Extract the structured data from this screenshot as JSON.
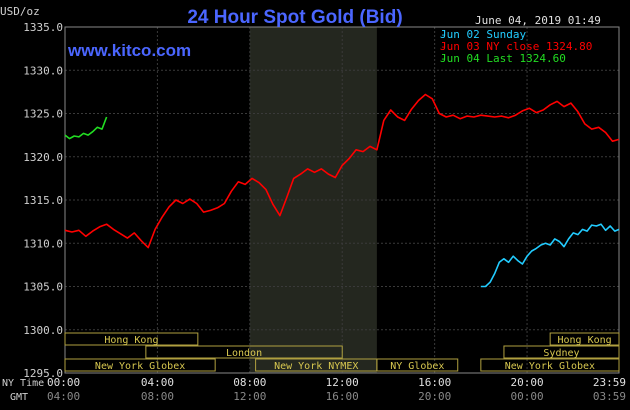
{
  "header": {
    "title": "24 Hour Spot Gold (Bid)",
    "site": "www.kitco.com",
    "y_unit": "USD/oz",
    "timestamp": "June 04, 2019 01:49"
  },
  "legend": [
    {
      "text": "Jun 02 Sunday",
      "color": "#22ccff"
    },
    {
      "text": "Jun 03 NY close 1324.80",
      "color": "#ff0000"
    },
    {
      "text": "Jun 04 Last 1324.60",
      "color": "#22dd22"
    }
  ],
  "x_axis": {
    "row1_label": "NY Time",
    "row2_label": "GMT",
    "ticks_ny": [
      "00:00",
      "04:00",
      "08:00",
      "12:00",
      "16:00",
      "20:00",
      "23:59"
    ],
    "ticks_gmt": [
      "04:00",
      "08:00",
      "12:00",
      "16:00",
      "20:00",
      "00:00",
      "03:59"
    ]
  },
  "sessions": [
    {
      "label": "Hong Kong",
      "start": 0,
      "end": 5.75,
      "row": 0
    },
    {
      "label": "Hong Kong",
      "start": 21.0,
      "end": 23.98,
      "row": 0
    },
    {
      "label": "London",
      "start": 3.5,
      "end": 12.0,
      "row": 1
    },
    {
      "label": "Sydney",
      "start": 19.0,
      "end": 23.98,
      "row": 1
    },
    {
      "label": "New York Globex",
      "start": 0,
      "end": 6.5,
      "row": 2
    },
    {
      "label": "New York NYMEX",
      "start": 8.25,
      "end": 13.5,
      "row": 2
    },
    {
      "label": "NY Globex",
      "start": 13.5,
      "end": 17.0,
      "row": 2
    },
    {
      "label": "New York Globex",
      "start": 18.0,
      "end": 23.98,
      "row": 2
    }
  ],
  "chart_data": {
    "type": "line",
    "title": "24 Hour Spot Gold (Bid)",
    "ylabel": "USD/oz",
    "ylim": [
      1295.0,
      1335.0
    ],
    "yticks": [
      1295.0,
      1300.0,
      1305.0,
      1310.0,
      1315.0,
      1320.0,
      1325.0,
      1330.0,
      1335.0
    ],
    "xlim": [
      0,
      23.98
    ],
    "shaded_region": [
      8.0,
      13.5
    ],
    "series": [
      {
        "name": "Jun 02 Sunday",
        "color": "#22ccff",
        "x": [
          18.0,
          18.2,
          18.4,
          18.6,
          18.8,
          19.0,
          19.2,
          19.4,
          19.6,
          19.8,
          20.0,
          20.2,
          20.4,
          20.6,
          20.8,
          21.0,
          21.2,
          21.4,
          21.6,
          21.8,
          22.0,
          22.2,
          22.4,
          22.6,
          22.8,
          23.0,
          23.2,
          23.4,
          23.6,
          23.8,
          23.98
        ],
        "values": [
          1305.0,
          1305.0,
          1305.5,
          1306.5,
          1307.8,
          1308.2,
          1307.8,
          1308.5,
          1308.0,
          1307.6,
          1308.5,
          1309.1,
          1309.4,
          1309.8,
          1310.0,
          1309.8,
          1310.5,
          1310.2,
          1309.6,
          1310.5,
          1311.2,
          1311.0,
          1311.6,
          1311.4,
          1312.1,
          1312.0,
          1312.2,
          1311.5,
          1312.0,
          1311.4,
          1311.6
        ]
      },
      {
        "name": "Jun 03 NY close 1324.80",
        "color": "#ff0000",
        "x": [
          0.0,
          0.3,
          0.6,
          0.9,
          1.2,
          1.5,
          1.8,
          2.1,
          2.4,
          2.7,
          3.0,
          3.3,
          3.6,
          3.9,
          4.2,
          4.5,
          4.8,
          5.1,
          5.4,
          5.7,
          6.0,
          6.3,
          6.6,
          6.9,
          7.2,
          7.5,
          7.8,
          8.1,
          8.4,
          8.7,
          9.0,
          9.3,
          9.6,
          9.9,
          10.2,
          10.5,
          10.8,
          11.1,
          11.4,
          11.7,
          12.0,
          12.3,
          12.6,
          12.9,
          13.2,
          13.5,
          13.8,
          14.1,
          14.4,
          14.7,
          15.0,
          15.3,
          15.6,
          15.9,
          16.2,
          16.5,
          16.8,
          17.1,
          17.4,
          17.7,
          18.0,
          18.3,
          18.6,
          18.9,
          19.2,
          19.5,
          19.8,
          20.1,
          20.4,
          20.7,
          21.0,
          21.3,
          21.6,
          21.9,
          22.2,
          22.5,
          22.8,
          23.1,
          23.4,
          23.7,
          23.98
        ],
        "values": [
          1311.5,
          1311.3,
          1311.5,
          1310.8,
          1311.4,
          1311.9,
          1312.2,
          1311.6,
          1311.1,
          1310.6,
          1311.2,
          1310.3,
          1309.5,
          1311.6,
          1313.0,
          1314.2,
          1315.0,
          1314.6,
          1315.1,
          1314.6,
          1313.6,
          1313.8,
          1314.1,
          1314.6,
          1316.0,
          1317.1,
          1316.8,
          1317.5,
          1317.0,
          1316.2,
          1314.5,
          1313.2,
          1315.3,
          1317.5,
          1318.0,
          1318.6,
          1318.2,
          1318.6,
          1318.0,
          1317.6,
          1319.0,
          1319.8,
          1320.8,
          1320.6,
          1321.2,
          1320.8,
          1324.2,
          1325.4,
          1324.6,
          1324.2,
          1325.5,
          1326.5,
          1327.2,
          1326.7,
          1325.0,
          1324.6,
          1324.8,
          1324.4,
          1324.7,
          1324.6,
          1324.8,
          1324.7,
          1324.6,
          1324.7,
          1324.5,
          1324.8,
          1325.3,
          1325.6,
          1325.1,
          1325.4,
          1326.0,
          1326.4,
          1325.8,
          1326.2,
          1325.2,
          1323.8,
          1323.2,
          1323.4,
          1322.8,
          1321.8,
          1322.0
        ]
      },
      {
        "name": "Jun 04 Last 1324.60",
        "color": "#22dd22",
        "x": [
          0.0,
          0.2,
          0.4,
          0.6,
          0.8,
          1.0,
          1.2,
          1.4,
          1.6,
          1.8
        ],
        "values": [
          1322.5,
          1322.1,
          1322.4,
          1322.3,
          1322.7,
          1322.5,
          1322.9,
          1323.4,
          1323.2,
          1324.6
        ]
      }
    ]
  }
}
